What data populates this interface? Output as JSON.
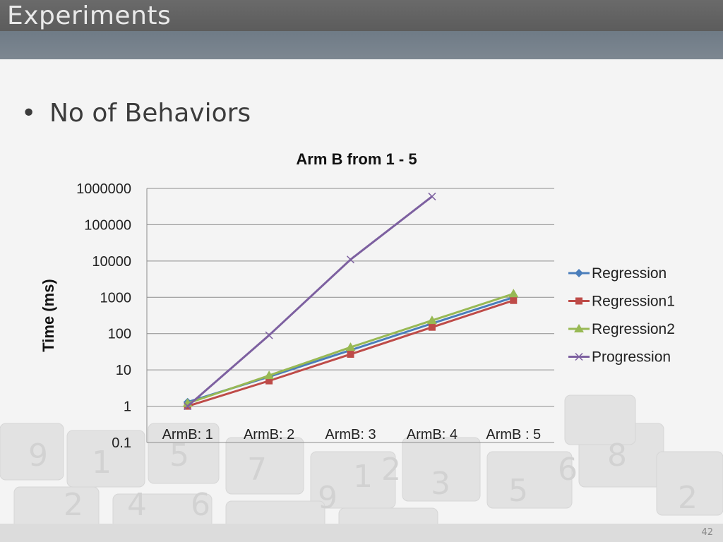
{
  "slide": {
    "title": "Experiments",
    "bullet": "No of Behaviors",
    "page_number": "42"
  },
  "colors": {
    "title_bar": "#626262",
    "band": "#76828c",
    "Regression": "#4a7ebb",
    "Regression1": "#be4b48",
    "Regression2": "#98b954",
    "Progression": "#7d60a0"
  },
  "chart_data": {
    "type": "line",
    "title": "Arm B from 1 - 5",
    "xlabel": "",
    "ylabel": "Time (ms)",
    "yscale": "log",
    "ylim": [
      0.1,
      1000000
    ],
    "ytick_labels": [
      "0.1",
      "1",
      "10",
      "100",
      "1000",
      "10000",
      "100000",
      "1000000"
    ],
    "categories": [
      "ArmB: 1",
      "ArmB: 2",
      "ArmB: 3",
      "ArmB: 4",
      "ArmB : 5"
    ],
    "grid": true,
    "legend_position": "right",
    "series": [
      {
        "name": "Regression",
        "marker": "diamond",
        "values": [
          1.3,
          6.5,
          35,
          190,
          1000
        ]
      },
      {
        "name": "Regression1",
        "marker": "square",
        "values": [
          1,
          5,
          27,
          150,
          820
        ]
      },
      {
        "name": "Regression2",
        "marker": "triangle",
        "values": [
          1.2,
          7,
          42,
          230,
          1250
        ]
      },
      {
        "name": "Progression",
        "marker": "x",
        "values": [
          1,
          90,
          11000,
          600000,
          null
        ]
      }
    ]
  }
}
